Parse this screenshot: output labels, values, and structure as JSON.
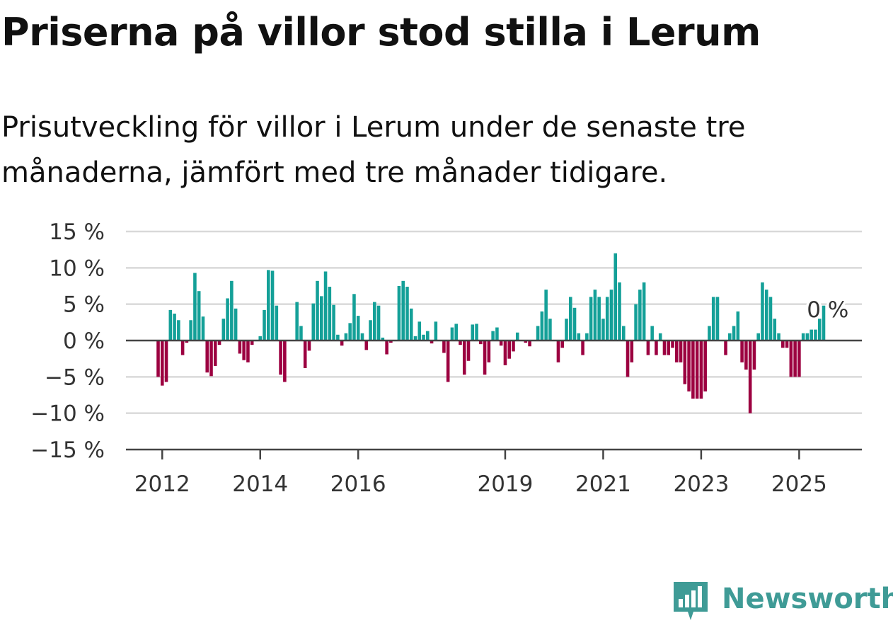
{
  "title": "Priserna på villor stod stilla i Lerum",
  "subtitle": "Prisutveckling för villor i Lerum under de senaste tre månaderna, jämfört med tre månader tidigare.",
  "brand": {
    "name": "Newsworthy",
    "color": "#3f9b96",
    "icon": "chart-bubble-icon"
  },
  "chart_data": {
    "type": "bar",
    "title": "",
    "xlabel": "",
    "ylabel": "",
    "ylim": [
      -15,
      15
    ],
    "y_ticks": [
      15,
      10,
      5,
      0,
      -5,
      -10,
      -15
    ],
    "y_tick_labels": [
      "15 %",
      "10 %",
      "5 %",
      "0 %",
      "−5 %",
      "−10 %",
      "−15 %"
    ],
    "x_ticks": [
      {
        "year": 2012,
        "label": "2012"
      },
      {
        "year": 2014,
        "label": "2014"
      },
      {
        "year": 2016,
        "label": "2016"
      },
      {
        "year": 2019,
        "label": "2019"
      },
      {
        "year": 2021,
        "label": "2021"
      },
      {
        "year": 2023,
        "label": "2023"
      },
      {
        "year": 2025,
        "label": "2025"
      }
    ],
    "grid": true,
    "colors": {
      "positive": "#14a098",
      "negative": "#9c0040",
      "grid": "#d9d9d9",
      "axis": "#444444"
    },
    "series": [
      {
        "start_month": "2011-12",
        "values": [
          -5,
          -6.2,
          -5.7,
          4.2,
          3.7,
          2.8,
          -2,
          -0.3,
          2.8,
          9.3,
          6.8,
          3.3,
          -4.4,
          -4.9,
          -3.5,
          -0.6,
          3,
          5.8,
          8.2,
          4.4,
          -1.8,
          -2.7,
          -3,
          -0.6,
          0,
          0.6,
          4.2,
          9.7,
          9.6,
          4.8,
          -4.7,
          -5.7,
          0,
          0,
          5.3,
          2,
          -3.8,
          -1.4,
          5.1,
          8.2,
          6.1,
          9.5,
          7.4,
          4.9,
          0.8,
          -0.7,
          1,
          2.4,
          6.4,
          3.4,
          1,
          -1.3,
          2.8,
          5.3,
          4.8,
          0.4,
          -1.9,
          -0.3,
          0,
          7.5,
          8.2,
          7.4,
          4.4,
          0.6,
          2.6,
          0.8,
          1.3,
          -0.4,
          2.6,
          0,
          -1.7,
          -5.7,
          1.8,
          2.3,
          -0.6,
          -4.7,
          -2.8,
          2.2,
          2.3,
          -0.5,
          -4.7,
          -3,
          1.3,
          1.8,
          -0.7,
          -3.4,
          -2.5,
          -1.5,
          1.1,
          0,
          -0.3,
          -0.8,
          0,
          2,
          4,
          7,
          3,
          0,
          -3,
          -1,
          3,
          6,
          4.5,
          1,
          -2,
          1,
          6,
          7,
          6,
          3,
          6,
          7,
          12,
          8,
          2,
          -5,
          -3,
          5,
          7,
          8,
          -2,
          2,
          -2,
          1,
          -2,
          -2,
          -1,
          -3,
          -3,
          -6,
          -7,
          -8,
          -8,
          -8,
          -7,
          2,
          6,
          6,
          0,
          -2,
          1,
          2,
          4,
          -3,
          -4,
          -10,
          -4,
          1,
          8,
          7,
          6,
          3,
          1,
          -1,
          -1,
          -5,
          -5,
          -5,
          1,
          1,
          1.5,
          1.5,
          3,
          4.8,
          0
        ]
      }
    ],
    "annotation": {
      "text": "0 %",
      "anchor": "last"
    }
  }
}
